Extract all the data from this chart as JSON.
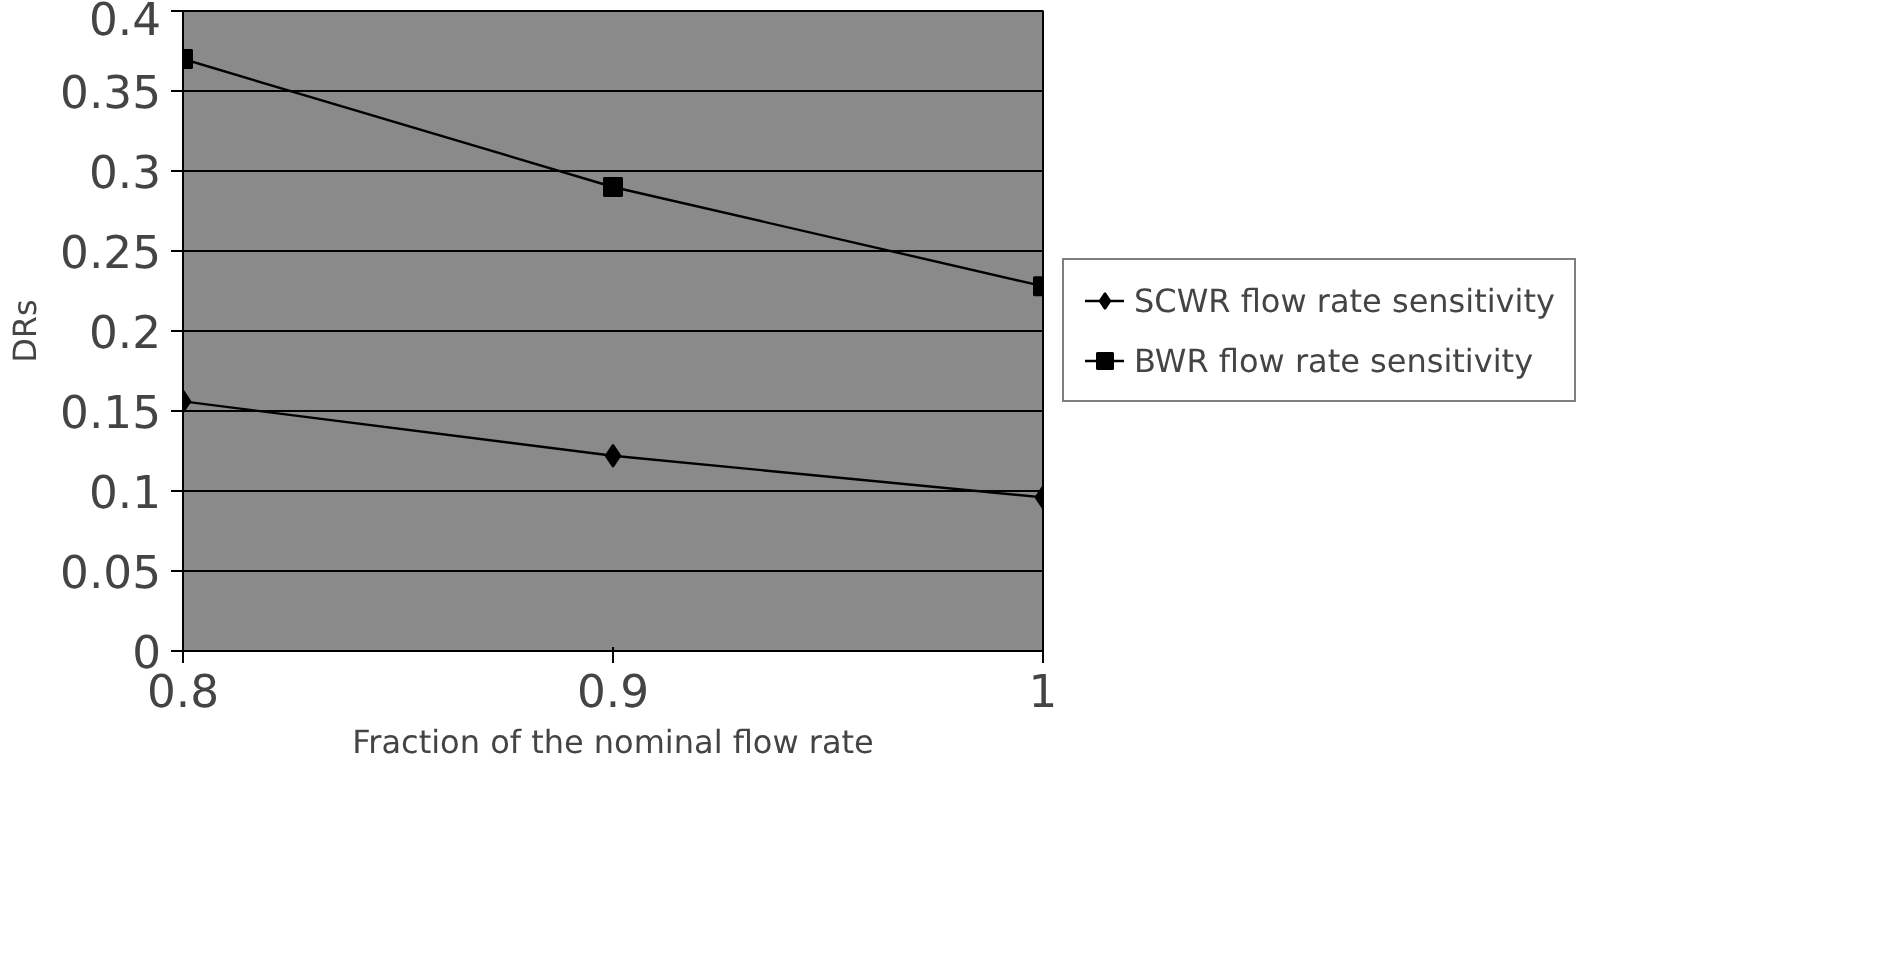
{
  "chart_data": {
    "type": "line",
    "xlabel": "Fraction of the nominal flow rate",
    "ylabel": "DRs",
    "x": [
      0.8,
      0.9,
      1
    ],
    "series": [
      {
        "name": "SCWR flow rate sensitivity",
        "color": "#000000",
        "marker": "diamond",
        "values": [
          0.156,
          0.122,
          0.096
        ]
      },
      {
        "name": "BWR flow rate sensitivity",
        "color": "#000000",
        "marker": "square",
        "values": [
          0.37,
          0.29,
          0.228
        ]
      }
    ],
    "xlim": [
      0.8,
      1
    ],
    "xticks": [
      0.8,
      0.9,
      1
    ],
    "ylim": [
      0,
      0.4
    ],
    "yticks": [
      0,
      0.05,
      0.1,
      0.15,
      0.2,
      0.25,
      0.3,
      0.35,
      0.4
    ],
    "grid": "y",
    "legend": "right",
    "line_style": "solid"
  }
}
